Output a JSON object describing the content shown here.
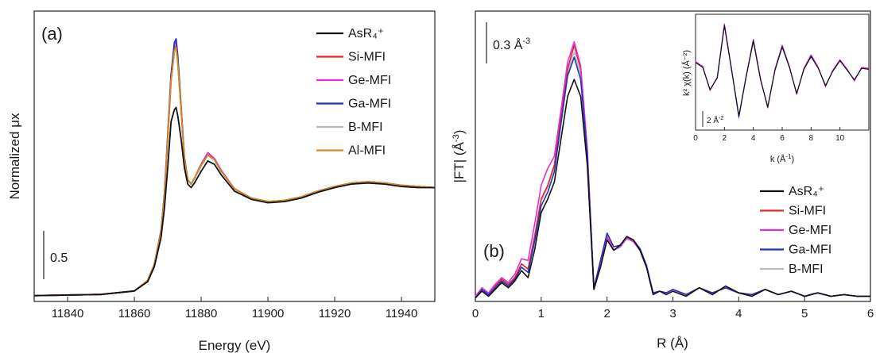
{
  "figure": {
    "left": {
      "panel_label": "(a)",
      "xlabel": "Energy (eV)",
      "ylabel": "Normalized μx",
      "scale_bar_label": "0.5"
    },
    "right": {
      "panel_label": "(b)",
      "xlabel": "R (Å)",
      "ylabel": "|FT| (Å",
      "ylabel_sup": "-3",
      "ylabel_tail": ")",
      "scale_bar_label": "0.3 Å",
      "scale_bar_sup": "-3",
      "inset": {
        "xlabel": "k (Å",
        "xlabel_sup": "-1",
        "xlabel_tail": ")",
        "ylabel": "k² χ(k) (Å⁻²)",
        "scale_bar_label": "2 Å",
        "scale_bar_sup": "-2"
      }
    }
  },
  "chart_data": [
    {
      "type": "line",
      "panel": "(a)",
      "xlabel": "Energy (eV)",
      "ylabel": "Normalized μx",
      "xlim": [
        11830,
        11950
      ],
      "ylim": [
        -0.05,
        2.45
      ],
      "xticks": [
        11840,
        11860,
        11880,
        11900,
        11920,
        11940
      ],
      "grid": false,
      "legend_position": "top-right",
      "x": [
        11830,
        11850,
        11860,
        11864,
        11866,
        11868,
        11869,
        11870,
        11871,
        11872,
        11872.5,
        11873,
        11874,
        11875,
        11876,
        11877,
        11878,
        11880,
        11882,
        11884,
        11886,
        11890,
        11895,
        11900,
        11905,
        11910,
        11915,
        11920,
        11925,
        11930,
        11935,
        11940,
        11945,
        11950
      ],
      "series": [
        {
          "name": "AsR₄⁺",
          "color": "#111111",
          "values": [
            0.0,
            0.01,
            0.04,
            0.12,
            0.25,
            0.5,
            0.75,
            1.1,
            1.5,
            1.6,
            1.62,
            1.55,
            1.35,
            1.1,
            0.96,
            0.93,
            0.97,
            1.07,
            1.16,
            1.13,
            1.04,
            0.9,
            0.83,
            0.8,
            0.81,
            0.84,
            0.89,
            0.93,
            0.96,
            0.97,
            0.96,
            0.94,
            0.93,
            0.93
          ]
        },
        {
          "name": "Si-MFI",
          "color": "#e02828",
          "values": [
            0.0,
            0.01,
            0.04,
            0.13,
            0.27,
            0.55,
            0.85,
            1.35,
            1.85,
            2.12,
            2.15,
            2.02,
            1.6,
            1.18,
            1.0,
            0.96,
            1.01,
            1.13,
            1.23,
            1.18,
            1.08,
            0.92,
            0.84,
            0.81,
            0.82,
            0.85,
            0.9,
            0.94,
            0.97,
            0.98,
            0.97,
            0.95,
            0.94,
            0.93
          ]
        },
        {
          "name": "Ge-MFI",
          "color": "#e030d8",
          "values": [
            0.0,
            0.01,
            0.04,
            0.13,
            0.27,
            0.56,
            0.87,
            1.38,
            1.9,
            2.16,
            2.19,
            2.05,
            1.62,
            1.19,
            1.0,
            0.96,
            1.01,
            1.13,
            1.23,
            1.18,
            1.08,
            0.92,
            0.84,
            0.81,
            0.82,
            0.85,
            0.9,
            0.94,
            0.97,
            0.98,
            0.97,
            0.95,
            0.94,
            0.93
          ]
        },
        {
          "name": "Ga-MFI",
          "color": "#2233bb",
          "values": [
            0.0,
            0.01,
            0.04,
            0.13,
            0.27,
            0.56,
            0.87,
            1.38,
            1.9,
            2.18,
            2.21,
            2.07,
            1.63,
            1.19,
            1.0,
            0.96,
            1.01,
            1.12,
            1.21,
            1.17,
            1.07,
            0.92,
            0.84,
            0.81,
            0.82,
            0.85,
            0.9,
            0.94,
            0.97,
            0.98,
            0.97,
            0.95,
            0.94,
            0.93
          ]
        },
        {
          "name": "B-MFI",
          "color": "#bbbbbb",
          "values": [
            0.0,
            0.01,
            0.04,
            0.13,
            0.27,
            0.55,
            0.85,
            1.35,
            1.85,
            2.1,
            2.13,
            2.0,
            1.6,
            1.18,
            1.0,
            0.96,
            1.01,
            1.12,
            1.21,
            1.17,
            1.07,
            0.92,
            0.84,
            0.81,
            0.82,
            0.85,
            0.9,
            0.94,
            0.97,
            0.98,
            0.97,
            0.95,
            0.94,
            0.93
          ]
        },
        {
          "name": "Al-MFI",
          "color": "#d98a1e",
          "values": [
            0.0,
            0.01,
            0.04,
            0.13,
            0.27,
            0.55,
            0.85,
            1.35,
            1.85,
            2.11,
            2.14,
            2.01,
            1.6,
            1.18,
            1.0,
            0.96,
            1.01,
            1.12,
            1.21,
            1.17,
            1.07,
            0.92,
            0.84,
            0.81,
            0.82,
            0.85,
            0.9,
            0.94,
            0.97,
            0.98,
            0.97,
            0.95,
            0.94,
            0.93
          ]
        }
      ]
    },
    {
      "type": "line",
      "panel": "(b)",
      "xlabel": "R (Å)",
      "ylabel": "|FT| (Å⁻³)",
      "xlim": [
        0,
        6
      ],
      "ylim": [
        0,
        1.7
      ],
      "xticks": [
        0,
        1,
        2,
        3,
        4,
        5,
        6
      ],
      "grid": false,
      "legend_position": "bottom-right",
      "x": [
        0,
        0.1,
        0.2,
        0.3,
        0.4,
        0.5,
        0.6,
        0.7,
        0.8,
        0.9,
        1.0,
        1.1,
        1.2,
        1.3,
        1.4,
        1.5,
        1.6,
        1.7,
        1.8,
        1.9,
        2.0,
        2.1,
        2.2,
        2.3,
        2.4,
        2.5,
        2.6,
        2.7,
        2.8,
        2.9,
        3.0,
        3.2,
        3.4,
        3.6,
        3.8,
        4.0,
        4.2,
        4.4,
        4.6,
        4.8,
        5.0,
        5.2,
        5.4,
        5.6,
        5.8,
        6.0
      ],
      "series": [
        {
          "name": "AsR₄⁺",
          "color": "#111111",
          "values": [
            0.02,
            0.06,
            0.03,
            0.07,
            0.11,
            0.08,
            0.12,
            0.18,
            0.14,
            0.3,
            0.52,
            0.6,
            0.7,
            0.95,
            1.2,
            1.3,
            1.2,
            0.8,
            0.07,
            0.2,
            0.36,
            0.3,
            0.33,
            0.38,
            0.36,
            0.3,
            0.2,
            0.04,
            0.06,
            0.04,
            0.06,
            0.03,
            0.08,
            0.04,
            0.09,
            0.05,
            0.03,
            0.07,
            0.04,
            0.06,
            0.03,
            0.05,
            0.03,
            0.04,
            0.03,
            0.03
          ]
        },
        {
          "name": "Si-MFI",
          "color": "#e02828",
          "values": [
            0.03,
            0.07,
            0.04,
            0.09,
            0.13,
            0.1,
            0.14,
            0.22,
            0.19,
            0.38,
            0.6,
            0.68,
            0.8,
            1.08,
            1.36,
            1.5,
            1.36,
            0.88,
            0.08,
            0.22,
            0.38,
            0.3,
            0.32,
            0.37,
            0.35,
            0.3,
            0.2,
            0.05,
            0.06,
            0.05,
            0.07,
            0.04,
            0.08,
            0.05,
            0.08,
            0.05,
            0.04,
            0.07,
            0.04,
            0.06,
            0.03,
            0.05,
            0.03,
            0.04,
            0.03,
            0.03
          ]
        },
        {
          "name": "Ge-MFI",
          "color": "#e030d8",
          "values": [
            0.03,
            0.08,
            0.05,
            0.1,
            0.14,
            0.11,
            0.16,
            0.25,
            0.24,
            0.45,
            0.68,
            0.78,
            0.85,
            1.12,
            1.4,
            1.52,
            1.38,
            0.9,
            0.08,
            0.22,
            0.38,
            0.3,
            0.32,
            0.37,
            0.35,
            0.3,
            0.2,
            0.05,
            0.06,
            0.05,
            0.07,
            0.04,
            0.08,
            0.05,
            0.08,
            0.05,
            0.04,
            0.07,
            0.04,
            0.06,
            0.03,
            0.05,
            0.03,
            0.04,
            0.03,
            0.03
          ]
        },
        {
          "name": "Ga-MFI",
          "color": "#2233bb",
          "values": [
            0.02,
            0.07,
            0.04,
            0.08,
            0.12,
            0.09,
            0.13,
            0.2,
            0.17,
            0.35,
            0.56,
            0.64,
            0.76,
            1.04,
            1.32,
            1.43,
            1.3,
            0.86,
            0.08,
            0.24,
            0.4,
            0.32,
            0.33,
            0.38,
            0.36,
            0.31,
            0.21,
            0.05,
            0.06,
            0.05,
            0.07,
            0.04,
            0.08,
            0.05,
            0.08,
            0.05,
            0.04,
            0.07,
            0.04,
            0.06,
            0.03,
            0.05,
            0.03,
            0.04,
            0.03,
            0.03
          ]
        },
        {
          "name": "B-MFI",
          "color": "#bbbbbb",
          "values": [
            0.03,
            0.07,
            0.04,
            0.09,
            0.13,
            0.1,
            0.14,
            0.22,
            0.19,
            0.37,
            0.59,
            0.67,
            0.79,
            1.06,
            1.34,
            1.46,
            1.33,
            0.87,
            0.08,
            0.22,
            0.38,
            0.3,
            0.32,
            0.37,
            0.35,
            0.3,
            0.2,
            0.05,
            0.06,
            0.05,
            0.07,
            0.04,
            0.08,
            0.05,
            0.08,
            0.05,
            0.04,
            0.07,
            0.04,
            0.06,
            0.03,
            0.05,
            0.03,
            0.04,
            0.03,
            0.03
          ]
        }
      ],
      "inset": {
        "type": "line",
        "xlabel": "k (Å⁻¹)",
        "ylabel": "k² χ(k) (Å⁻²)",
        "xlim": [
          0,
          12
        ],
        "ylim": [
          -6,
          6
        ],
        "xticks": [
          0,
          2,
          4,
          6,
          8,
          10
        ],
        "x": [
          0,
          0.5,
          1,
          1.5,
          2,
          2.5,
          3,
          3.5,
          4,
          4.5,
          5,
          5.5,
          6,
          6.5,
          7,
          7.5,
          8,
          8.5,
          9,
          9.5,
          10,
          10.5,
          11,
          11.5,
          12
        ],
        "series": [
          {
            "name": "AsR₄⁺",
            "color": "#111111",
            "values": [
              1.0,
              0.5,
              -1.8,
              -0.6,
              4.8,
              0.2,
              -4.5,
              -0.5,
              3.2,
              -0.8,
              -3.6,
              0.2,
              2.6,
              0.5,
              -2.2,
              0.3,
              1.6,
              0.4,
              -1.4,
              0.1,
              1.2,
              0.2,
              -0.8,
              0.4,
              0.3
            ]
          },
          {
            "name": "Si-MFI",
            "color": "#e02828",
            "values": [
              1.1,
              0.6,
              -1.9,
              -0.5,
              5.0,
              0.3,
              -4.6,
              -0.4,
              3.4,
              -0.7,
              -3.7,
              0.3,
              2.8,
              0.6,
              -2.3,
              0.4,
              1.8,
              0.5,
              -1.5,
              0.2,
              1.3,
              0.3,
              -0.9,
              0.5,
              0.4
            ]
          },
          {
            "name": "Ge-MFI",
            "color": "#e030d8",
            "values": [
              1.1,
              0.6,
              -1.9,
              -0.5,
              5.0,
              0.3,
              -4.6,
              -0.4,
              3.4,
              -0.7,
              -3.7,
              0.3,
              2.8,
              0.6,
              -2.3,
              0.4,
              1.8,
              0.5,
              -1.5,
              0.2,
              1.3,
              0.3,
              -0.9,
              0.5,
              0.4
            ]
          },
          {
            "name": "Ga-MFI",
            "color": "#2233bb",
            "values": [
              1.0,
              0.5,
              -1.8,
              -0.6,
              4.9,
              0.2,
              -4.7,
              -0.5,
              3.3,
              -0.8,
              -3.6,
              0.2,
              2.7,
              0.5,
              -2.2,
              0.3,
              1.7,
              0.4,
              -1.4,
              0.1,
              1.2,
              0.2,
              -0.8,
              0.4,
              0.3
            ]
          },
          {
            "name": "B-MFI",
            "color": "#bbbbbb",
            "values": [
              1.0,
              0.5,
              -1.8,
              -0.6,
              4.9,
              0.2,
              -4.6,
              -0.5,
              3.3,
              -0.8,
              -3.6,
              0.2,
              2.7,
              0.5,
              -2.2,
              0.3,
              1.7,
              0.4,
              -1.4,
              0.1,
              1.2,
              0.2,
              -0.8,
              0.4,
              0.3
            ]
          }
        ]
      }
    }
  ]
}
